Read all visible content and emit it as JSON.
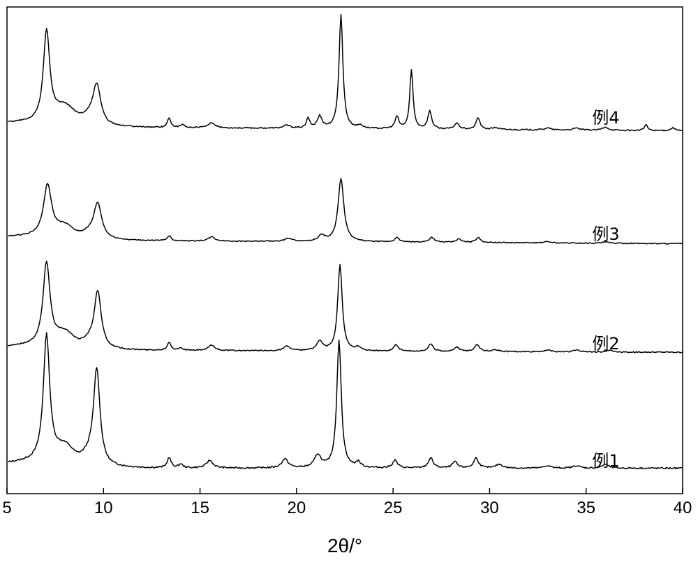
{
  "chart_data": {
    "type": "line",
    "xlabel": "2θ/°",
    "ylabel": "",
    "xlim": [
      5,
      40
    ],
    "x_ticks": [
      5,
      10,
      15,
      20,
      25,
      30,
      35,
      40
    ],
    "y_ticks_shown": false,
    "grid": false,
    "series": [
      {
        "name": "例1",
        "baseline": 0.03,
        "slope": 0.0,
        "bumps": [
          [
            6.5,
            0.05,
            3.0
          ],
          [
            8.0,
            0.12,
            0.6
          ],
          [
            9.2,
            0.06,
            0.5
          ]
        ],
        "peaks": [
          [
            7.05,
            1.0,
            0.2
          ],
          [
            9.65,
            0.75,
            0.2
          ],
          [
            13.4,
            0.08,
            0.12
          ],
          [
            14.0,
            0.03,
            0.12
          ],
          [
            15.5,
            0.06,
            0.2
          ],
          [
            19.4,
            0.07,
            0.2
          ],
          [
            21.1,
            0.1,
            0.2
          ],
          [
            22.2,
            1.0,
            0.14
          ],
          [
            23.2,
            0.04,
            0.15
          ],
          [
            25.1,
            0.06,
            0.15
          ],
          [
            26.95,
            0.08,
            0.15
          ],
          [
            28.2,
            0.05,
            0.15
          ],
          [
            29.3,
            0.08,
            0.15
          ],
          [
            30.5,
            0.03,
            0.2
          ],
          [
            33.0,
            0.02,
            0.2
          ],
          [
            34.5,
            0.02,
            0.2
          ],
          [
            36.0,
            0.03,
            0.2
          ]
        ]
      },
      {
        "name": "例2",
        "baseline": 0.03,
        "slope": -0.0007,
        "bumps": [
          [
            6.5,
            0.05,
            3.0
          ],
          [
            8.0,
            0.14,
            0.6
          ],
          [
            9.2,
            0.06,
            0.5
          ]
        ],
        "peaks": [
          [
            7.05,
            0.92,
            0.22
          ],
          [
            9.7,
            0.62,
            0.22
          ],
          [
            13.4,
            0.09,
            0.12
          ],
          [
            14.0,
            0.03,
            0.12
          ],
          [
            15.6,
            0.06,
            0.2
          ],
          [
            19.5,
            0.05,
            0.2
          ],
          [
            21.2,
            0.1,
            0.2
          ],
          [
            22.25,
            0.95,
            0.14
          ],
          [
            23.2,
            0.04,
            0.15
          ],
          [
            25.15,
            0.07,
            0.15
          ],
          [
            26.95,
            0.08,
            0.15
          ],
          [
            28.3,
            0.05,
            0.15
          ],
          [
            29.35,
            0.08,
            0.15
          ],
          [
            30.3,
            0.02,
            0.2
          ],
          [
            33.0,
            0.02,
            0.2
          ],
          [
            34.5,
            0.02,
            0.2
          ],
          [
            36.2,
            0.02,
            0.2
          ]
        ]
      },
      {
        "name": "例3",
        "baseline": 0.03,
        "slope": -0.0012,
        "bumps": [
          [
            6.5,
            0.05,
            3.0
          ],
          [
            8.0,
            0.12,
            0.6
          ],
          [
            9.2,
            0.05,
            0.5
          ]
        ],
        "peaks": [
          [
            7.1,
            0.62,
            0.25
          ],
          [
            9.7,
            0.42,
            0.25
          ],
          [
            13.4,
            0.06,
            0.12
          ],
          [
            15.6,
            0.05,
            0.2
          ],
          [
            19.6,
            0.04,
            0.2
          ],
          [
            21.3,
            0.07,
            0.2
          ],
          [
            22.3,
            0.75,
            0.18
          ],
          [
            25.2,
            0.05,
            0.15
          ],
          [
            27.0,
            0.06,
            0.15
          ],
          [
            28.4,
            0.04,
            0.15
          ],
          [
            29.4,
            0.06,
            0.15
          ],
          [
            33.0,
            0.015,
            0.2
          ],
          [
            36.0,
            0.015,
            0.2
          ]
        ]
      },
      {
        "name": "例4",
        "baseline": 0.03,
        "slope": -0.0012,
        "bumps": [
          [
            6.5,
            0.05,
            3.0
          ],
          [
            8.0,
            0.16,
            0.7
          ],
          [
            9.2,
            0.06,
            0.5
          ]
        ],
        "peaks": [
          [
            7.05,
            0.92,
            0.2
          ],
          [
            9.65,
            0.4,
            0.25
          ],
          [
            13.4,
            0.1,
            0.1
          ],
          [
            14.1,
            0.03,
            0.12
          ],
          [
            15.6,
            0.05,
            0.2
          ],
          [
            19.5,
            0.03,
            0.2
          ],
          [
            20.6,
            0.1,
            0.1
          ],
          [
            21.2,
            0.12,
            0.15
          ],
          [
            22.3,
            1.15,
            0.12
          ],
          [
            23.3,
            0.03,
            0.15
          ],
          [
            25.2,
            0.12,
            0.12
          ],
          [
            25.95,
            0.6,
            0.1
          ],
          [
            26.9,
            0.18,
            0.12
          ],
          [
            28.3,
            0.06,
            0.15
          ],
          [
            29.4,
            0.12,
            0.12
          ],
          [
            30.3,
            0.02,
            0.2
          ],
          [
            33.0,
            0.02,
            0.2
          ],
          [
            34.5,
            0.02,
            0.2
          ],
          [
            36.0,
            0.03,
            0.2
          ],
          [
            38.1,
            0.06,
            0.1
          ],
          [
            39.5,
            0.03,
            0.15
          ]
        ]
      }
    ]
  }
}
